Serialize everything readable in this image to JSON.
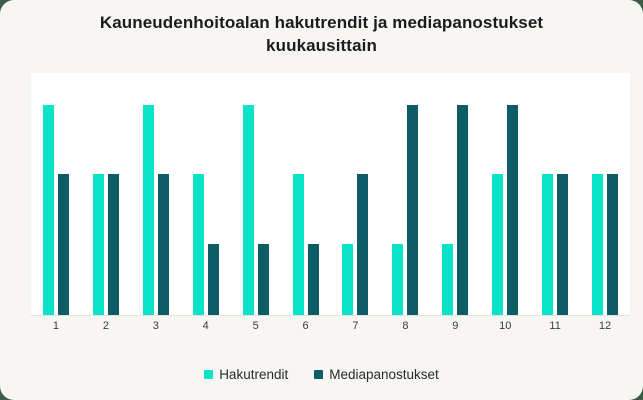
{
  "page": {
    "backdrop_color": "#3d5e46",
    "card_color": "#f7f6f3",
    "plot_background": "#ffffff",
    "axis_line_color": "#e5e3e0"
  },
  "chart_data": {
    "type": "bar",
    "title": "Kauneudenhoitoalan hakutrendit ja mediapanostukset kuukausittain",
    "categories": [
      "1",
      "2",
      "3",
      "4",
      "5",
      "6",
      "7",
      "8",
      "9",
      "10",
      "11",
      "12"
    ],
    "series": [
      {
        "name": "Hakutrendit",
        "color": "#0be3c9",
        "values": [
          100,
          67,
          100,
          67,
          100,
          67,
          34,
          34,
          34,
          67,
          67,
          67
        ]
      },
      {
        "name": "Mediapanostukset",
        "color": "#0e5d66",
        "values": [
          67,
          67,
          67,
          34,
          34,
          34,
          67,
          100,
          100,
          100,
          67,
          67
        ]
      }
    ],
    "xlabel": "",
    "ylabel": "",
    "ylim": [
      0,
      115
    ],
    "grid": false,
    "legend_position": "bottom"
  }
}
